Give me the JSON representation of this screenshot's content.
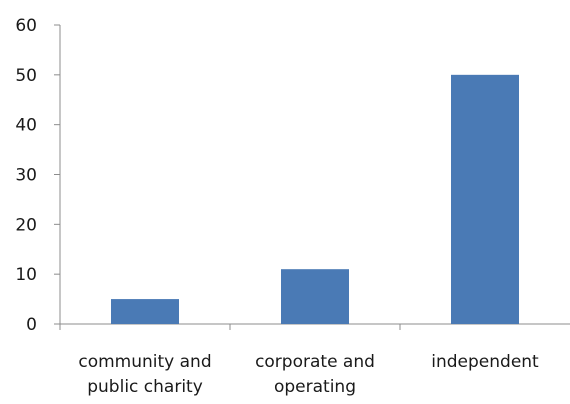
{
  "chart_data": {
    "type": "bar",
    "categories": [
      [
        "community and",
        "public charity"
      ],
      [
        "corporate and",
        "operating"
      ],
      [
        "independent"
      ]
    ],
    "values": [
      5,
      11,
      50
    ],
    "ylim": [
      0,
      60
    ],
    "yticks": [
      0,
      10,
      20,
      30,
      40,
      50,
      60
    ],
    "title": "",
    "xlabel": "",
    "ylabel": "",
    "grid": false,
    "legend": "none",
    "bar_color": "#4a7ab5",
    "axis_color": "#8c8c8c"
  }
}
